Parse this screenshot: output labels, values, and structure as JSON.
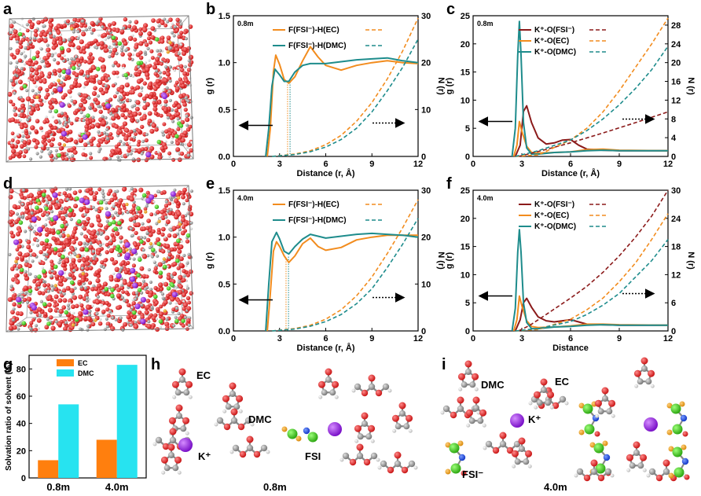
{
  "panel_labels": {
    "a": "a",
    "b": "b",
    "c": "c",
    "d": "d",
    "e": "e",
    "f": "f",
    "g": "g",
    "h": "h",
    "i": "i"
  },
  "colors": {
    "orange": "#F28C1E",
    "teal": "#1E8C8C",
    "darkred": "#8B1A1A",
    "cyan": "#27E3F0",
    "bar_orange": "#FF7F0E"
  },
  "chart_data": [
    {
      "id": "b",
      "type": "line",
      "concentration": "0.8m",
      "xlabel": "Distance (r, Å)",
      "ylabel": "g (r)",
      "y2label": "N (r)",
      "xlim": [
        0,
        12
      ],
      "ylim": [
        0,
        1.5
      ],
      "y2lim": [
        0,
        30
      ],
      "xticks": [
        "0",
        "3",
        "6",
        "9",
        "12"
      ],
      "yticks": [
        "0.0",
        "0.5",
        "1.0",
        "1.5"
      ],
      "y2ticks": [
        "0",
        "10",
        "20",
        "30"
      ],
      "series": [
        {
          "name": "F(FSI⁻)-H(EC)",
          "color": "#F28C1E",
          "axis": "left",
          "x": [
            2.2,
            2.4,
            2.6,
            2.75,
            3.0,
            3.3,
            3.6,
            4.0,
            4.5,
            5.0,
            5.5,
            6.0,
            7.0,
            8.0,
            9.0,
            10.0,
            11.0,
            12.0
          ],
          "y": [
            0,
            0.3,
            0.9,
            1.08,
            0.98,
            0.82,
            0.78,
            0.85,
            1.02,
            1.17,
            1.06,
            0.97,
            0.92,
            0.97,
            1.0,
            1.02,
            1.0,
            0.99
          ]
        },
        {
          "name": "F(FSI⁻)-H(DMC)",
          "color": "#1E8C8C",
          "axis": "left",
          "x": [
            2.1,
            2.3,
            2.5,
            2.7,
            3.0,
            3.3,
            3.6,
            4.0,
            4.5,
            5.0,
            6.0,
            7.0,
            8.0,
            9.0,
            10.0,
            11.0,
            12.0
          ],
          "y": [
            0,
            0.3,
            0.75,
            0.93,
            0.87,
            0.8,
            0.8,
            0.9,
            0.97,
            0.99,
            0.99,
            1.01,
            1.03,
            1.04,
            1.05,
            1.02,
            1.0
          ]
        },
        {
          "name": "N EC",
          "color": "#F28C1E",
          "axis": "right",
          "dashed": true,
          "x": [
            2.5,
            4,
            5,
            6,
            7,
            8,
            9,
            10,
            11,
            12
          ],
          "y": [
            0,
            0.5,
            1.2,
            2.5,
            4.5,
            7.5,
            11.5,
            16.5,
            22.5,
            29.5
          ]
        },
        {
          "name": "N DMC",
          "color": "#1E8C8C",
          "axis": "right",
          "dashed": true,
          "x": [
            2.5,
            4,
            5,
            6,
            7,
            8,
            9,
            10,
            11,
            12
          ],
          "y": [
            0,
            0.4,
            1.0,
            2.0,
            3.6,
            6.0,
            9.5,
            14,
            19,
            25
          ]
        }
      ]
    },
    {
      "id": "c",
      "type": "line",
      "concentration": "0.8m",
      "xlabel": "Distance (r, Å)",
      "ylabel": "g (r)",
      "y2label": "N (r)",
      "xlim": [
        0,
        12
      ],
      "ylim": [
        0,
        25
      ],
      "y2lim": [
        0,
        30
      ],
      "xticks": [
        "0",
        "3",
        "6",
        "9",
        "12"
      ],
      "yticks": [
        "0",
        "5",
        "10",
        "15",
        "20",
        "25"
      ],
      "y2ticks": [
        "0",
        "4",
        "8",
        "12",
        "16",
        "20",
        "24",
        "28"
      ],
      "series": [
        {
          "name": "K⁺-O(FSI⁻)",
          "color": "#8B1A1A",
          "axis": "left",
          "x": [
            2.6,
            2.9,
            3.1,
            3.3,
            3.6,
            4.0,
            4.5,
            5.0,
            5.5,
            6.0,
            6.5,
            7.0,
            8.0,
            9.0,
            10.0,
            12.0
          ],
          "y": [
            0,
            2,
            8,
            9,
            6,
            3.3,
            2.2,
            2.4,
            2.9,
            3.0,
            2.0,
            1.3,
            1.1,
            1.0,
            1.0,
            1.0
          ]
        },
        {
          "name": "K⁺-O(EC)",
          "color": "#F28C1E",
          "axis": "left",
          "x": [
            2.5,
            2.7,
            2.85,
            3.0,
            3.3,
            3.6,
            4.0,
            5.0,
            6.0,
            7.0,
            8.0,
            9.0,
            12.0
          ],
          "y": [
            0,
            2,
            6.2,
            4.5,
            1.8,
            0.7,
            0.6,
            0.7,
            0.8,
            1.2,
            1.3,
            1.1,
            1.0
          ]
        },
        {
          "name": "K⁺-O(DMC)",
          "color": "#1E8C8C",
          "axis": "left",
          "x": [
            2.4,
            2.6,
            2.75,
            2.85,
            2.95,
            3.1,
            3.3,
            3.6,
            4.0,
            5.0,
            6.0,
            7.0,
            8.0,
            9.0,
            12.0
          ],
          "y": [
            0,
            5,
            18,
            24,
            18,
            6,
            1.5,
            0.4,
            0.4,
            0.7,
            0.8,
            1.0,
            1.1,
            1.0,
            1.0
          ]
        },
        {
          "name": "N FSI",
          "color": "#8B1A1A",
          "axis": "right",
          "dashed": true,
          "x": [
            2.8,
            3.5,
            4.5,
            6,
            8,
            10,
            12
          ],
          "y": [
            0,
            0.6,
            1.5,
            2.9,
            5.0,
            7.2,
            9.5
          ]
        },
        {
          "name": "N EC",
          "color": "#F28C1E",
          "axis": "right",
          "dashed": true,
          "x": [
            2.6,
            4,
            6,
            7,
            8,
            9,
            10,
            11,
            12
          ],
          "y": [
            0,
            0.3,
            3.5,
            6,
            9.5,
            14,
            19,
            24,
            29.5
          ]
        },
        {
          "name": "N DMC",
          "color": "#1E8C8C",
          "axis": "right",
          "dashed": true,
          "x": [
            2.6,
            4,
            6,
            7,
            8,
            9,
            10,
            11,
            12
          ],
          "y": [
            0,
            1.2,
            3.5,
            5.5,
            8,
            11,
            14.5,
            18.5,
            23.5
          ]
        }
      ]
    },
    {
      "id": "e",
      "type": "line",
      "concentration": "4.0m",
      "xlabel": "Distance (r, Å)",
      "ylabel": "g (r)",
      "y2label": "N (r)",
      "xlim": [
        0,
        12
      ],
      "ylim": [
        0,
        1.5
      ],
      "y2lim": [
        0,
        30
      ],
      "xticks": [
        "0",
        "3",
        "6",
        "9",
        "12"
      ],
      "yticks": [
        "0.0",
        "0.5",
        "1.0",
        "1.5"
      ],
      "y2ticks": [
        "0",
        "10",
        "20",
        "30"
      ],
      "series": [
        {
          "name": "F(FSI⁻)-H(EC)",
          "color": "#F28C1E",
          "axis": "left",
          "x": [
            2.2,
            2.4,
            2.6,
            2.8,
            3.0,
            3.3,
            3.6,
            4.0,
            4.5,
            5.0,
            5.5,
            6.0,
            7.0,
            8.0,
            9.0,
            10.0,
            11.0,
            12.0
          ],
          "y": [
            0,
            0.4,
            0.85,
            0.95,
            0.9,
            0.8,
            0.73,
            0.8,
            0.93,
            0.99,
            0.9,
            0.86,
            0.89,
            0.97,
            1.0,
            1.02,
            1.02,
            1.02
          ]
        },
        {
          "name": "F(FSI⁻)-H(DMC)",
          "color": "#1E8C8C",
          "axis": "left",
          "x": [
            2.1,
            2.3,
            2.5,
            2.8,
            3.0,
            3.3,
            3.6,
            4.0,
            4.5,
            5.0,
            6.0,
            7.0,
            8.0,
            9.0,
            10.0,
            11.0,
            12.0
          ],
          "y": [
            0,
            0.5,
            0.95,
            1.05,
            0.98,
            0.85,
            0.82,
            0.9,
            0.98,
            1.03,
            0.99,
            1.01,
            1.03,
            1.04,
            1.03,
            1.02,
            1.0
          ]
        },
        {
          "name": "N EC",
          "color": "#F28C1E",
          "axis": "right",
          "dashed": true,
          "x": [
            2.5,
            4,
            5,
            6,
            7,
            8,
            9,
            10,
            11,
            12
          ],
          "y": [
            0,
            0.5,
            1.2,
            2.5,
            4.5,
            7.5,
            11.5,
            16.5,
            22,
            28
          ]
        },
        {
          "name": "N DMC",
          "color": "#1E8C8C",
          "axis": "right",
          "dashed": true,
          "x": [
            2.5,
            4,
            5,
            6,
            7,
            8,
            9,
            10,
            11,
            12
          ],
          "y": [
            0,
            0.4,
            1.0,
            2.0,
            3.5,
            5.8,
            9,
            13.5,
            18.5,
            24
          ]
        }
      ]
    },
    {
      "id": "f",
      "type": "line",
      "concentration": "4.0m",
      "xlabel": "Distance",
      "ylabel": "g (r)",
      "y2label": "N (r)",
      "xlim": [
        0,
        12
      ],
      "ylim": [
        0,
        25
      ],
      "y2lim": [
        0,
        30
      ],
      "xticks": [
        "0",
        "3",
        "6",
        "9",
        "12"
      ],
      "yticks": [
        "0",
        "5",
        "10",
        "15",
        "20",
        "25"
      ],
      "y2ticks": [
        "0",
        "6",
        "12",
        "18",
        "24",
        "30"
      ],
      "series": [
        {
          "name": "K⁺-O(FSI⁻)",
          "color": "#8B1A1A",
          "axis": "left",
          "x": [
            2.6,
            2.9,
            3.1,
            3.3,
            3.6,
            4.0,
            4.5,
            5.0,
            5.5,
            6.0,
            6.5,
            7.0,
            8.0,
            9.0,
            10.0,
            12.0
          ],
          "y": [
            0,
            2,
            5,
            5.8,
            4.2,
            2.5,
            1.8,
            1.6,
            1.8,
            2.0,
            1.6,
            1.2,
            1.1,
            1.0,
            1.0,
            1.0
          ]
        },
        {
          "name": "K⁺-O(EC)",
          "color": "#F28C1E",
          "axis": "left",
          "x": [
            2.5,
            2.7,
            2.85,
            3.0,
            3.3,
            3.6,
            4.0,
            5.0,
            6.0,
            7.0,
            8.0,
            9.0,
            12.0
          ],
          "y": [
            0,
            2,
            6.2,
            4.5,
            1.8,
            0.8,
            0.6,
            0.7,
            0.9,
            1.2,
            1.2,
            1.1,
            1.0
          ]
        },
        {
          "name": "K⁺-O(DMC)",
          "color": "#1E8C8C",
          "axis": "left",
          "x": [
            2.4,
            2.6,
            2.75,
            2.85,
            2.95,
            3.1,
            3.3,
            3.6,
            4.0,
            5.0,
            6.0,
            7.0,
            8.0,
            9.0,
            12.0
          ],
          "y": [
            0,
            4,
            14,
            18,
            14,
            5,
            1.5,
            0.4,
            0.4,
            0.7,
            0.8,
            1.0,
            1.1,
            1.0,
            1.0
          ]
        },
        {
          "name": "N FSI",
          "color": "#8B1A1A",
          "axis": "right",
          "dashed": true,
          "x": [
            2.8,
            3.5,
            4.5,
            6,
            7,
            8,
            9,
            10,
            11,
            12
          ],
          "y": [
            0,
            1.2,
            3.5,
            7,
            9.5,
            12.5,
            16,
            20,
            24.5,
            30
          ]
        },
        {
          "name": "N EC",
          "color": "#F28C1E",
          "axis": "right",
          "dashed": true,
          "x": [
            2.6,
            4,
            6,
            7,
            8,
            9,
            10,
            11,
            12
          ],
          "y": [
            0,
            0.3,
            2.5,
            4.5,
            7,
            10.5,
            14.5,
            19.5,
            25
          ]
        },
        {
          "name": "N DMC",
          "color": "#1E8C8C",
          "axis": "right",
          "dashed": true,
          "x": [
            2.6,
            4,
            6,
            7,
            8,
            9,
            10,
            11,
            12
          ],
          "y": [
            0,
            0.5,
            2,
            3.5,
            5.5,
            8,
            11.5,
            15,
            19.5
          ]
        }
      ]
    },
    {
      "id": "g",
      "type": "bar",
      "ylabel": "Solvation ratio of solvent (%)",
      "categories": [
        "0.8m",
        "4.0m"
      ],
      "series": [
        {
          "name": "EC",
          "color": "#FF7F0E",
          "values": [
            13,
            28
          ]
        },
        {
          "name": "DMC",
          "color": "#27E3F0",
          "values": [
            54,
            83
          ]
        }
      ],
      "ylim": [
        0,
        90
      ],
      "yticks": [
        "0",
        "20",
        "40",
        "60",
        "80"
      ]
    }
  ],
  "legend_labels": {
    "b": [
      "F(FSI⁻)-H(EC)",
      "F(FSI⁻)-H(DMC)"
    ],
    "c": [
      "K⁺-O(FSI⁻)",
      "K⁺-O(EC)",
      "K⁺-O(DMC)"
    ],
    "e": [
      "F(FSI⁻)-H(EC)",
      "F(FSI⁻)-H(DMC)"
    ],
    "f": [
      "K⁺-O(FSI⁻)",
      "K⁺-O(EC)",
      "K⁺-O(DMC)"
    ]
  },
  "molecule_labels": {
    "h_ec": "EC",
    "h_dmc": "DMC",
    "h_k": "K⁺",
    "h_fsi": "FSI",
    "h_conc": "0.8m",
    "i_dmc": "DMC",
    "i_ec": "EC",
    "i_k": "K⁺",
    "i_fsi": "FSI⁻",
    "i_conc": "4.0m"
  }
}
